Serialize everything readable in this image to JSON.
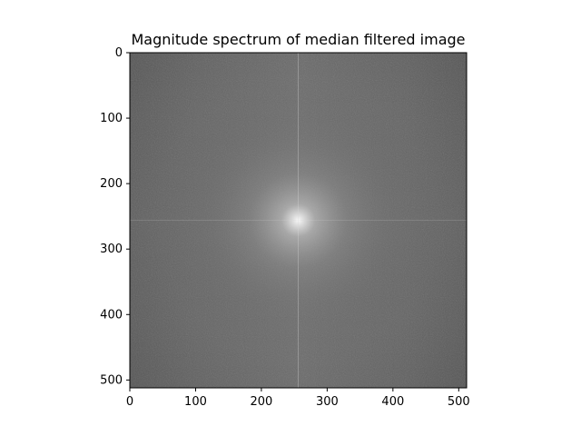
{
  "chart_data": {
    "type": "heatmap",
    "title": "Magnitude spectrum of median filtered image",
    "xlabel": "",
    "ylabel": "",
    "xlim": [
      0,
      512
    ],
    "ylim": [
      512,
      0
    ],
    "xticks": [
      0,
      100,
      200,
      300,
      400,
      500
    ],
    "yticks": [
      0,
      100,
      200,
      300,
      400,
      500
    ],
    "xtick_labels": [
      "0",
      "100",
      "200",
      "300",
      "400",
      "500"
    ],
    "ytick_labels": [
      "0",
      "100",
      "200",
      "300",
      "400",
      "500"
    ],
    "colormap": "gray",
    "grid": false,
    "description_values": {
      "image_size": [
        512,
        512
      ],
      "peak_center": [
        256,
        256
      ]
    }
  }
}
